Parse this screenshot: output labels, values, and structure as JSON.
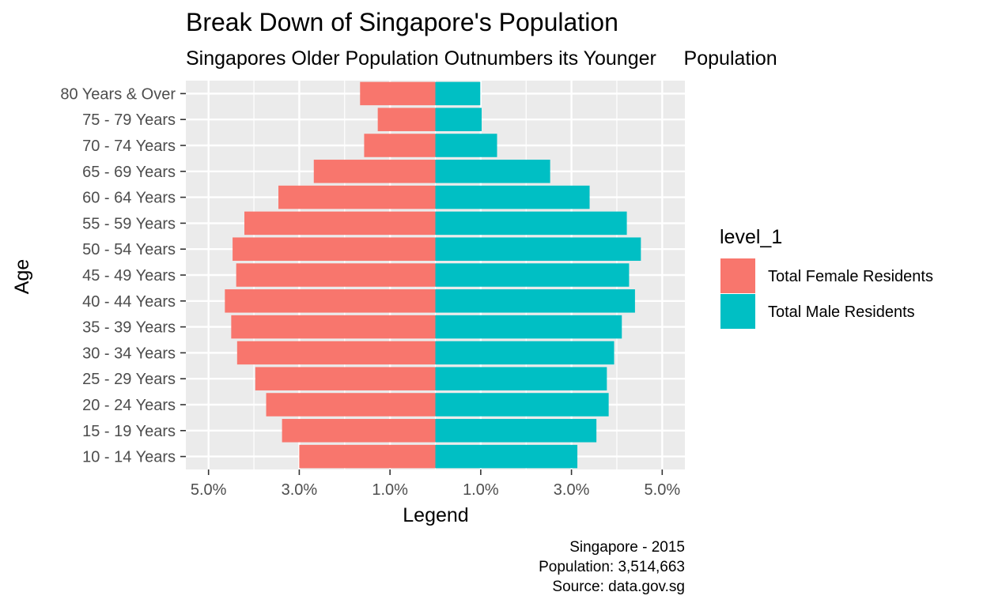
{
  "chart_data": {
    "type": "bar",
    "orientation": "horizontal",
    "layout": "population-pyramid",
    "title": "Break Down of Singapore's Population",
    "subtitle": "Singapores Older Population Outnumbers its Younger     Population",
    "xlabel": "Legend",
    "ylabel": "Age",
    "xlim": [
      -5.5,
      5.5
    ],
    "x_ticks": [
      -5,
      -3,
      -1,
      1,
      3,
      5
    ],
    "x_tick_labels": [
      "5.0%",
      "3.0%",
      "1.0%",
      "1.0%",
      "3.0%",
      "5.0%"
    ],
    "unit": "%",
    "grid": true,
    "legend": {
      "title": "level_1",
      "position": "right"
    },
    "categories": [
      "10 - 14 Years",
      "15 - 19 Years",
      "20 - 24 Years",
      "25 - 29 Years",
      "30 - 34 Years",
      "35 - 39 Years",
      "40 - 44 Years",
      "45 - 49 Years",
      "50 - 54 Years",
      "55 - 59 Years",
      "60 - 64 Years",
      "65 - 69 Years",
      "70 - 74 Years",
      "75 - 79 Years",
      "80 Years & Over"
    ],
    "series": [
      {
        "name": "Total Female Residents",
        "color": "#F8766D",
        "values": [
          -3.0,
          -3.38,
          -3.73,
          -3.97,
          -4.37,
          -4.5,
          -4.64,
          -4.39,
          -4.47,
          -4.21,
          -3.46,
          -2.68,
          -1.57,
          -1.27,
          -1.66
        ]
      },
      {
        "name": "Total Male Residents",
        "color": "#00BFC4",
        "values": [
          3.13,
          3.55,
          3.82,
          3.78,
          3.94,
          4.11,
          4.4,
          4.27,
          4.53,
          4.22,
          3.4,
          2.53,
          1.36,
          1.02,
          0.99
        ]
      }
    ],
    "caption": [
      "Singapore - 2015",
      "Population: 3,514,663",
      "Source: data.gov.sg"
    ],
    "colors": {
      "panel_background": "#EBEBEB",
      "grid_line": "#FFFFFF",
      "tick_text": "#4D4D4D"
    }
  }
}
